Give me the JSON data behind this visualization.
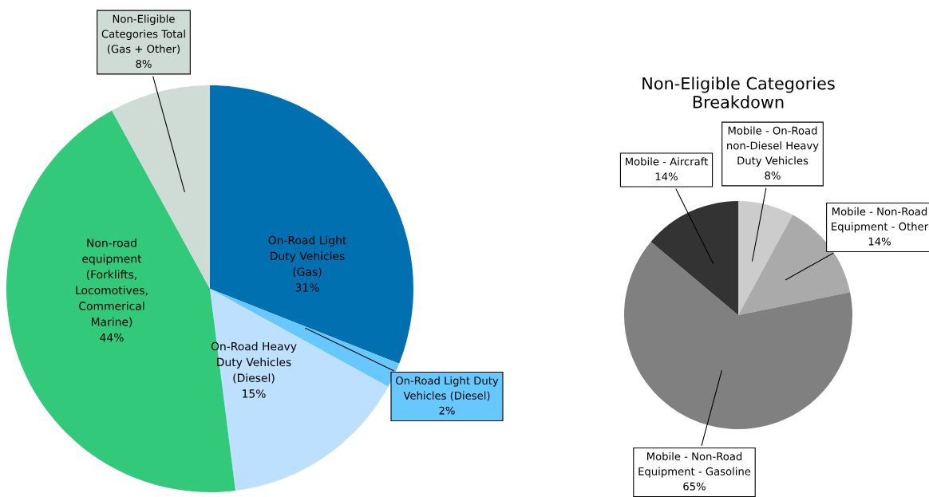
{
  "chart_data": [
    {
      "type": "pie",
      "categories": [
        "On-Road Light\nDuty Vehicles\n(Gas)",
        "On-Road Light Duty\nVehicles (Diesel)",
        "On-Road Heavy\nDuty Vehicles\n(Diesel)",
        "Non-road\nequipment\n(Forklifts,\nLocomotives,\nCommerical\nMarine)",
        "Non-Eligible\nCategories Total\n(Gas + Other)"
      ],
      "values": [
        31,
        2,
        15,
        44,
        8
      ],
      "value_labels": [
        "31%",
        "2%",
        "15%",
        "44%",
        "8%"
      ],
      "colors": [
        "#0070b0",
        "#66c8ff",
        "#bde0ff",
        "#33c97a",
        "#cfdbd5"
      ]
    },
    {
      "type": "pie",
      "title": "Non-Eligible Categories\nBreakdown",
      "categories": [
        "Mobile - On-Road\nnon-Diesel Heavy\nDuty Vehicles",
        "Mobile - Non-Road\nEquipment - Other",
        "Mobile - Non-Road\nEquipment - Gasoline",
        "Mobile - Aircraft"
      ],
      "values": [
        8,
        14,
        65,
        14
      ],
      "value_labels": [
        "8%",
        "14%",
        "65%",
        "14%"
      ],
      "colors": [
        "#cccccc",
        "#aaaaaa",
        "#808080",
        "#333333"
      ]
    }
  ]
}
